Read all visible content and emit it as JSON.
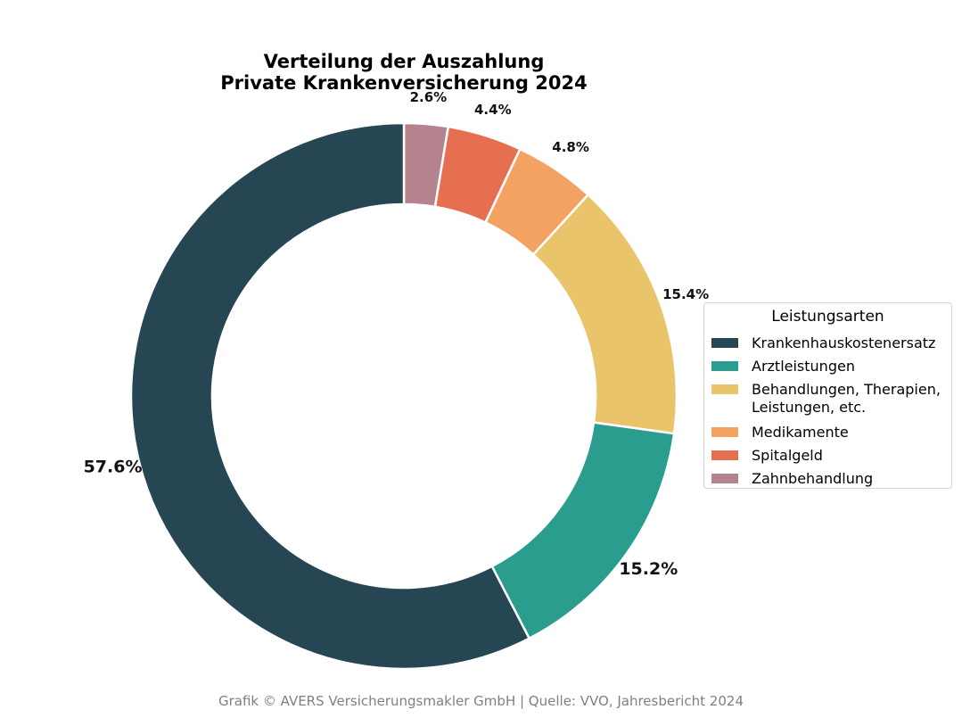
{
  "chart_data": {
    "type": "pie",
    "variant": "donut",
    "title_lines": [
      "Verteilung der Auszahlung",
      "Private Krankenversicherung 2024"
    ],
    "legend_title": "Leistungsarten",
    "legend_position": "right",
    "slices": [
      {
        "label": "Krankenhauskostenersatz",
        "legend_lines": [
          "Krankenhauskostenersatz"
        ],
        "value": 57.6,
        "display": "57.6%",
        "color": "#264653"
      },
      {
        "label": "Arztleistungen",
        "legend_lines": [
          "Arztleistungen"
        ],
        "value": 15.2,
        "display": "15.2%",
        "color": "#2A9D8F"
      },
      {
        "label": "Behandlungen, Therapien, Leistungen, etc.",
        "legend_lines": [
          "Behandlungen, Therapien,",
          "Leistungen, etc."
        ],
        "value": 15.4,
        "display": "15.4%",
        "color": "#E9C46A"
      },
      {
        "label": "Medikamente",
        "legend_lines": [
          "Medikamente"
        ],
        "value": 4.8,
        "display": "4.8%",
        "color": "#F4A261"
      },
      {
        "label": "Spitalgeld",
        "legend_lines": [
          "Spitalgeld"
        ],
        "value": 4.4,
        "display": "4.4%",
        "color": "#E76F51"
      },
      {
        "label": "Zahnbehandlung",
        "legend_lines": [
          "Zahnbehandlung"
        ],
        "value": 2.6,
        "display": "2.6%",
        "color": "#B5838D"
      }
    ]
  },
  "footer": "Grafik © AVERS Versicherungsmakler GmbH | Quelle: VVO, Jahresbericht 2024"
}
